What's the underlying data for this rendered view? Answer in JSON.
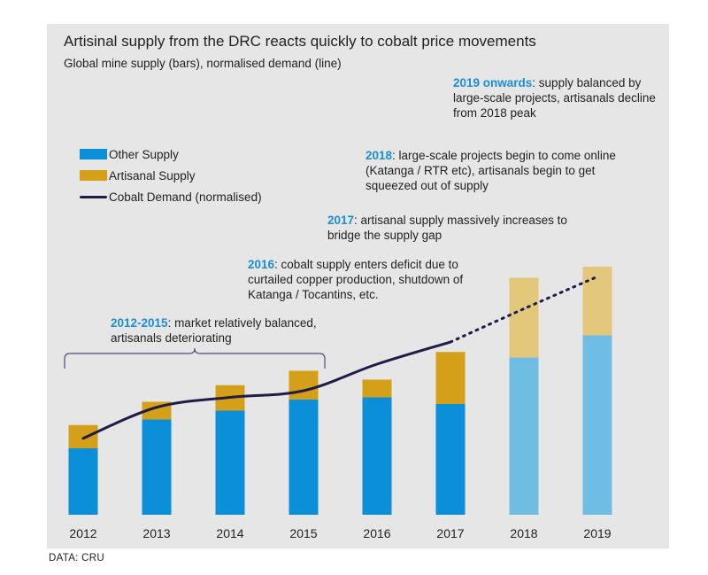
{
  "title": "Artisinal supply from the DRC reacts quickly to cobalt price movements",
  "subtitle": "Global mine supply (bars), normalised demand (line)",
  "source": "DATA: CRU",
  "legend": {
    "other": "Other Supply",
    "artisanal": "Artisanal Supply",
    "demand": "Cobalt Demand (normalised)"
  },
  "colors": {
    "other": "#0a8fd8",
    "artisanal": "#d4a019",
    "other_forecast": "#6fbde3",
    "artisanal_forecast": "#e3c77a",
    "demand": "#1f1c48",
    "highlight": "#1a8fd8",
    "bracket": "#4a4a7a"
  },
  "notes": {
    "n2019": {
      "head": "2019 onwards",
      "body": ": supply balanced by large-scale projects, artisanals decline from 2018 peak"
    },
    "n2018": {
      "head": "2018",
      "body": ": large-scale projects begin to come online (Katanga / RTR etc), artisanals begin to get squeezed out of supply"
    },
    "n2017": {
      "head": "2017",
      "body": ": artisanal supply massively increases to bridge the supply gap"
    },
    "n2016": {
      "head": "2016",
      "body": ": cobalt supply enters deficit due to curtailed copper production, shutdown of Katanga / Tocantins, etc."
    },
    "n2012": {
      "head": "2012-2015",
      "body": ": market relatively balanced, artisanals deteriorating"
    }
  },
  "chart_data": {
    "type": "bar",
    "stacked": true,
    "title": "Artisinal supply from the DRC reacts quickly to cobalt price movements",
    "subtitle": "Global mine supply (bars), normalised demand (line)",
    "categories": [
      "2012",
      "2013",
      "2014",
      "2015",
      "2016",
      "2017",
      "2018",
      "2019"
    ],
    "series": [
      {
        "name": "Other Supply",
        "values": [
          30,
          43,
          47,
          52,
          53,
          50,
          71,
          81
        ]
      },
      {
        "name": "Artisanal Supply",
        "values": [
          10.5,
          8,
          11.5,
          13,
          8,
          23.5,
          36,
          31
        ]
      }
    ],
    "line": {
      "name": "Cobalt Demand (normalised)",
      "values": [
        34.5,
        48.5,
        53,
        56,
        68,
        78,
        93,
        107.5
      ],
      "forecast_from_index": 5
    },
    "forecast_categories": [
      "2018",
      "2019"
    ],
    "ylim": [
      0,
      120
    ],
    "xlabel": "",
    "ylabel": ""
  }
}
